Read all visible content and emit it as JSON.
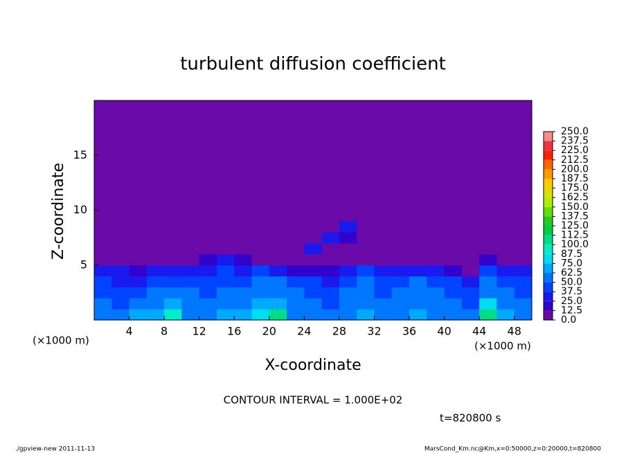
{
  "chart_data": {
    "type": "heatmap",
    "title": "turbulent diffusion coefficient",
    "x_label": "X-coordinate",
    "y_label": "Z-coordinate",
    "x_unit": "(×1000 m)",
    "y_unit": "(×1000 m)",
    "contour_note": "CONTOUR INTERVAL = 1.000E+02",
    "time_label": "t=820800 s",
    "footer_left": "./gpview-new   2011-11-13",
    "footer_right": "MarsCond_Km.nc@Km,x=0:50000,z=0:20000,t=820800",
    "xlim": [
      0,
      50
    ],
    "ylim": [
      0,
      20
    ],
    "xticks": [
      4,
      8,
      12,
      16,
      20,
      24,
      28,
      32,
      36,
      40,
      44,
      48
    ],
    "yticks": [
      5,
      10,
      15
    ],
    "x": [
      1,
      3,
      5,
      7,
      9,
      11,
      13,
      15,
      17,
      19,
      21,
      23,
      25,
      27,
      29,
      31,
      33,
      35,
      37,
      39,
      41,
      43,
      45,
      47,
      49
    ],
    "z": [
      0.5,
      1.5,
      2.5,
      3.5,
      4.5,
      5.5,
      6.5,
      7.5,
      8.5
    ],
    "values": [
      [
        60,
        55,
        65,
        70,
        95,
        60,
        55,
        65,
        70,
        75,
        108,
        60,
        55,
        50,
        60,
        65,
        55,
        60,
        65,
        60,
        55,
        50,
        108,
        70,
        55
      ],
      [
        50,
        45,
        55,
        60,
        70,
        55,
        50,
        55,
        60,
        65,
        70,
        55,
        50,
        45,
        55,
        60,
        50,
        55,
        60,
        55,
        50,
        45,
        80,
        60,
        50
      ],
      [
        45,
        40,
        45,
        50,
        55,
        50,
        45,
        50,
        50,
        55,
        60,
        50,
        45,
        40,
        50,
        55,
        45,
        50,
        55,
        50,
        45,
        40,
        60,
        50,
        45
      ],
      [
        40,
        35,
        35,
        40,
        45,
        45,
        40,
        45,
        45,
        50,
        50,
        40,
        40,
        35,
        45,
        50,
        40,
        45,
        50,
        45,
        40,
        35,
        50,
        40,
        40
      ],
      [
        30,
        25,
        20,
        25,
        30,
        35,
        30,
        40,
        35,
        40,
        35,
        20,
        15,
        20,
        30,
        40,
        30,
        35,
        30,
        25,
        20,
        5,
        40,
        25,
        30
      ],
      [
        0,
        0,
        0,
        0,
        0,
        10,
        15,
        30,
        20,
        10,
        5,
        0,
        0,
        0,
        0,
        10,
        5,
        0,
        0,
        0,
        0,
        0,
        20,
        10,
        0
      ],
      [
        0,
        0,
        0,
        0,
        0,
        0,
        0,
        0,
        0,
        0,
        0,
        0,
        30,
        0,
        0,
        0,
        0,
        0,
        0,
        0,
        0,
        0,
        0,
        0,
        0
      ],
      [
        0,
        0,
        0,
        0,
        0,
        0,
        0,
        0,
        0,
        0,
        0,
        0,
        0,
        30,
        20,
        0,
        0,
        0,
        0,
        0,
        0,
        0,
        0,
        0,
        0
      ],
      [
        0,
        0,
        0,
        0,
        0,
        0,
        0,
        0,
        0,
        0,
        0,
        0,
        0,
        0,
        25,
        0,
        0,
        0,
        0,
        0,
        0,
        0,
        0,
        0,
        0
      ]
    ],
    "levels": [
      {
        "value": 0,
        "label": "0.0"
      },
      12.5,
      {
        "value": 25,
        "label": "25.0"
      },
      37.5,
      {
        "value": 50,
        "label": "50.0"
      },
      62.5,
      {
        "value": 75,
        "label": "75.0"
      },
      87.5,
      {
        "value": 100,
        "label": "100.0"
      },
      112.5,
      {
        "value": 125,
        "label": "125.0"
      },
      137.5,
      {
        "value": 150,
        "label": "150.0"
      },
      162.5,
      {
        "value": 175,
        "label": "175.0"
      },
      187.5,
      {
        "value": 200,
        "label": "200.0"
      },
      212.5,
      {
        "value": 225,
        "label": "225.0"
      },
      237.5,
      {
        "value": 250,
        "label": "250.0"
      }
    ],
    "colors": [
      "#6a0aa8",
      "#3300cc",
      "#1a1aee",
      "#0044ff",
      "#0077ff",
      "#00aaff",
      "#00ddee",
      "#00eecc",
      "#00dd88",
      "#00cc44",
      "#22cc22",
      "#66dd00",
      "#aaee00",
      "#dddd00",
      "#ffcc00",
      "#ff9900",
      "#ff6600",
      "#ff2200",
      "#ee3344",
      "#ff8888"
    ]
  }
}
